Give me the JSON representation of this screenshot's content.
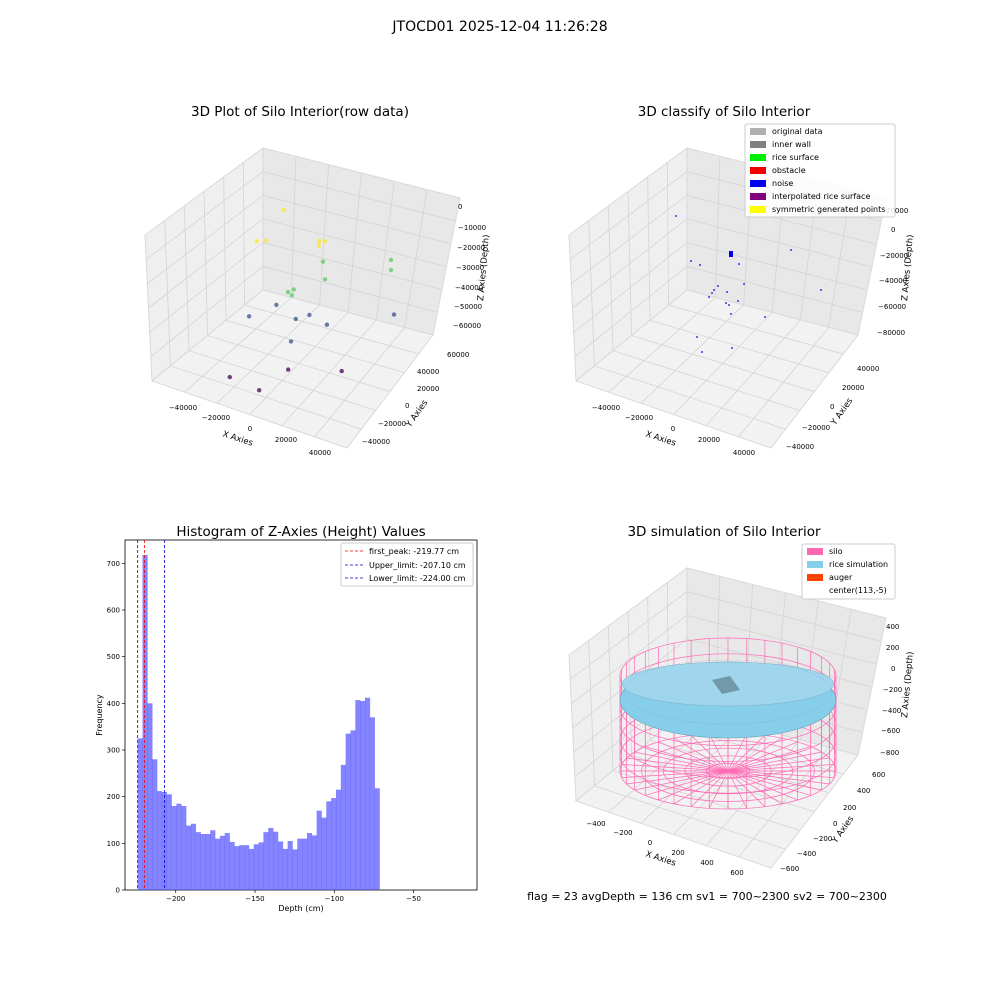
{
  "suptitle": "JTOCD01 2025-12-04 11:26:28",
  "status_line": "flag = 23   avgDepth = 136 cm   sv1 = 700~2300   sv2 = 700~2300",
  "chart_data": [
    {
      "type": "scatter",
      "title": "3D Plot of Silo Interior(row data)",
      "xlabel": "X Axies",
      "ylabel": "Y Axies",
      "zlabel": "Z Axies (Depth)",
      "x_ticks": [
        "−40000",
        "−20000",
        "0",
        "20000",
        "40000"
      ],
      "y_ticks": [
        "−40000",
        "−20000",
        "0",
        "20000",
        "40000",
        "60000"
      ],
      "z_ticks": [
        "0",
        "−10000",
        "−20000",
        "−30000",
        "−40000",
        "−50000",
        "−60000"
      ],
      "xlim": [
        -50000,
        50000
      ],
      "ylim": [
        -50000,
        65000
      ],
      "zlim": [
        -70000,
        0
      ],
      "grid": true,
      "points": [
        {
          "x": -22000,
          "y": 30000,
          "z": -8000
        },
        {
          "x": 3000,
          "y": 22000,
          "z": -12000
        },
        {
          "x": 0,
          "y": 22000,
          "z": -13000
        },
        {
          "x": 1000,
          "y": 20000,
          "z": -14000
        },
        {
          "x": -26000,
          "y": 10000,
          "z": -17000
        },
        {
          "x": -22000,
          "y": 12000,
          "z": -16000
        },
        {
          "x": 6000,
          "y": 14000,
          "z": -18000
        },
        {
          "x": 28000,
          "y": 40000,
          "z": -20000
        },
        {
          "x": 28000,
          "y": 40000,
          "z": -25000
        },
        {
          "x": 10000,
          "y": 8000,
          "z": -23000
        },
        {
          "x": 37000,
          "y": 25000,
          "z": -38000
        },
        {
          "x": -4000,
          "y": -2000,
          "z": -30000
        },
        {
          "x": -3000,
          "y": 0,
          "z": -32000
        },
        {
          "x": -4000,
          "y": 4000,
          "z": -31000
        },
        {
          "x": -8000,
          "y": -6000,
          "z": -36000
        },
        {
          "x": 3000,
          "y": 6000,
          "z": -42000
        },
        {
          "x": 10000,
          "y": 10000,
          "z": -46000
        },
        {
          "x": -2000,
          "y": 2000,
          "z": -44000
        },
        {
          "x": -1000,
          "y": -5000,
          "z": -52000
        },
        {
          "x": -20000,
          "y": -10000,
          "z": -44000
        },
        {
          "x": 5000,
          "y": -20000,
          "z": -58000
        },
        {
          "x": 25000,
          "y": -5000,
          "z": -58000
        },
        {
          "x": -20000,
          "y": -30000,
          "z": -66000
        },
        {
          "x": 0,
          "y": -40000,
          "z": -62000
        }
      ]
    },
    {
      "type": "scatter",
      "title": "3D classify of Silo Interior",
      "xlabel": "X Axies",
      "ylabel": "Y Axies",
      "zlabel": "Z Axies (Depth)",
      "x_ticks": [
        "−40000",
        "−20000",
        "0",
        "20000",
        "40000"
      ],
      "y_ticks": [
        "−40000",
        "−20000",
        "0",
        "20000",
        "40000"
      ],
      "z_ticks": [
        "20000",
        "0",
        "−20000",
        "−40000",
        "−60000",
        "−80000"
      ],
      "grid": true,
      "legend_position": "top-right",
      "legend": [
        {
          "name": "original data",
          "color": "#b0b0b0"
        },
        {
          "name": "inner wall",
          "color": "#808080"
        },
        {
          "name": "rice surface",
          "color": "#00ee00"
        },
        {
          "name": "obstacle",
          "color": "#ee0000"
        },
        {
          "name": "noise",
          "color": "#0000ee"
        },
        {
          "name": "interpolated rice surface",
          "color": "#800080"
        },
        {
          "name": "symmetric generated points",
          "color": "#ffff00"
        }
      ]
    },
    {
      "type": "bar",
      "title": "Histogram of Z-Axies (Height) Values",
      "xlabel": "Depth (cm)",
      "ylabel": "Frequency",
      "xlim": [
        -232,
        -10
      ],
      "ylim": [
        0,
        750
      ],
      "x_ticks": [
        "−200",
        "−150",
        "−100",
        "−50"
      ],
      "y_ticks": [
        "0",
        "100",
        "200",
        "300",
        "400",
        "500",
        "600",
        "700"
      ],
      "bar_color": "#5050ff",
      "bin_start": -224,
      "bin_width": 3.05,
      "values": [
        325,
        718,
        400,
        280,
        212,
        210,
        205,
        180,
        185,
        180,
        138,
        142,
        124,
        120,
        120,
        128,
        110,
        116,
        122,
        103,
        94,
        96,
        96,
        88,
        98,
        102,
        124,
        133,
        125,
        104,
        88,
        105,
        87,
        110,
        110,
        122,
        117,
        170,
        155,
        190,
        197,
        215,
        268,
        335,
        342,
        407,
        405,
        412,
        370,
        218
      ],
      "lines": [
        {
          "label": "first_peak: -219.77 cm",
          "x": -219.77,
          "color": "#ee0000"
        },
        {
          "label": "Upper_limit: -207.10 cm",
          "x": -207.1,
          "color": "#0000cc"
        },
        {
          "label": "Lower_limit: -224.00 cm",
          "x": -224.0,
          "color": "#0000cc"
        }
      ],
      "legend_position": "top-right"
    },
    {
      "type": "surface",
      "title": "3D simulation of Silo Interior",
      "xlabel": "X Axies",
      "ylabel": "Y Axies",
      "zlabel": "Z Axies (Depth)",
      "x_ticks": [
        "−400",
        "−200",
        "0",
        "200",
        "400",
        "600"
      ],
      "y_ticks": [
        "−600",
        "−400",
        "−200",
        "0",
        "200",
        "400",
        "600"
      ],
      "z_ticks": [
        "400",
        "200",
        "0",
        "−200",
        "−400",
        "−600",
        "−800"
      ],
      "grid": true,
      "legend_position": "top-right",
      "legend": [
        {
          "name": "silo",
          "color": "#ff69b4"
        },
        {
          "name": "rice simulation",
          "color": "#87ceeb"
        },
        {
          "name": "auger",
          "color": "#ff4500"
        },
        {
          "name": "center(113,-5)",
          "color": ""
        }
      ]
    }
  ]
}
